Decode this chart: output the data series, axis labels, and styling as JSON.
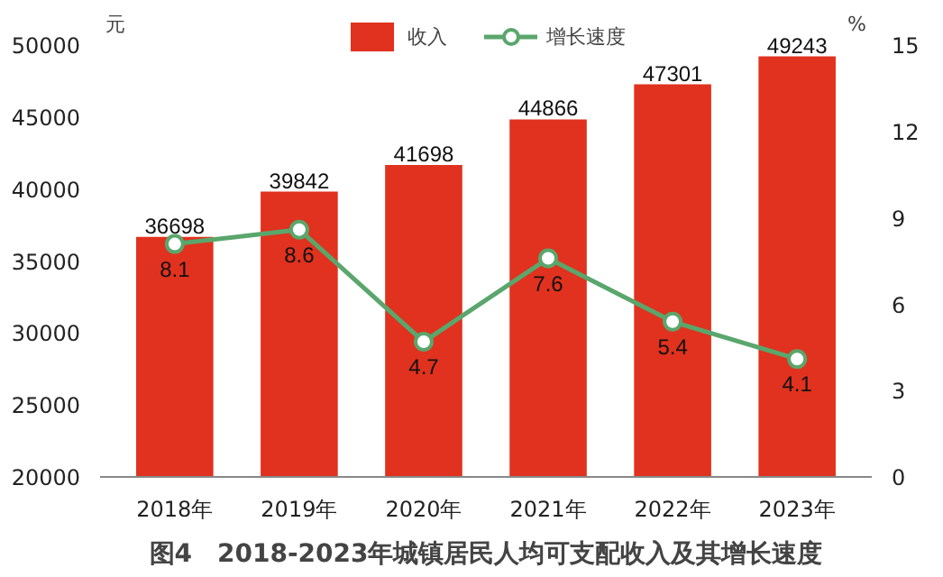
{
  "chart_data": {
    "type": "bar",
    "title": "图4　2018-2023年城镇居民人均可支配收入及其增长速度",
    "ylabel": "元",
    "y2label": "%",
    "categories": [
      "2018年",
      "2019年",
      "2020年",
      "2021年",
      "2022年",
      "2023年"
    ],
    "series": [
      {
        "name": "收入",
        "type": "bar",
        "color": "#e0321e",
        "values": [
          36698,
          39842,
          41698,
          44866,
          47301,
          49243
        ]
      },
      {
        "name": "增长速度",
        "type": "line",
        "axis": "y2",
        "color": "#5aa66c",
        "marker": "circle",
        "values": [
          8.1,
          8.6,
          4.7,
          7.6,
          5.4,
          4.1
        ]
      }
    ],
    "ylim": [
      20000,
      50000
    ],
    "yticks": [
      20000,
      25000,
      30000,
      35000,
      40000,
      45000,
      50000
    ],
    "y2lim": [
      0,
      15
    ],
    "y2ticks": [
      0,
      3,
      6,
      9,
      12,
      15
    ],
    "data_labels": true,
    "grid": false,
    "legend": "top"
  }
}
